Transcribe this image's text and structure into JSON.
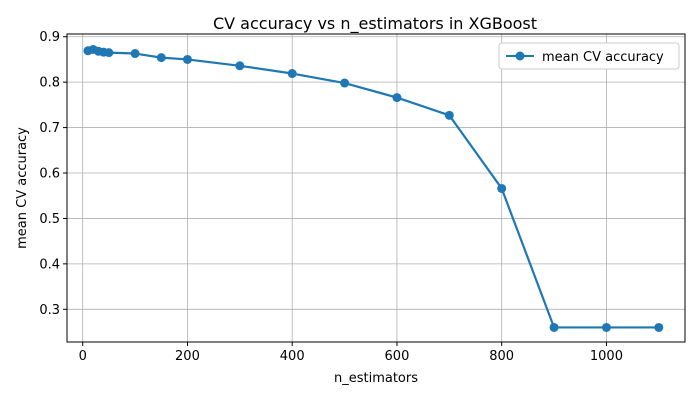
{
  "chart_data": {
    "type": "line",
    "title": "CV accuracy vs n_estimators in XGBoost",
    "xlabel": "n_estimators",
    "ylabel": "mean CV accuracy",
    "xlim": [
      -30,
      1150
    ],
    "ylim": [
      0.228,
      0.906
    ],
    "xticks": [
      0,
      200,
      400,
      600,
      800,
      1000
    ],
    "xtick_labels": [
      "0",
      "200",
      "400",
      "600",
      "800",
      "1000"
    ],
    "yticks": [
      0.3,
      0.4,
      0.5,
      0.6,
      0.7,
      0.8,
      0.9
    ],
    "ytick_labels": [
      "0.3",
      "0.4",
      "0.5",
      "0.6",
      "0.7",
      "0.8",
      "0.9"
    ],
    "grid": true,
    "legend_position": "top-right",
    "series": [
      {
        "name": "mean CV accuracy",
        "color": "#1f77b4",
        "marker": "circle",
        "x": [
          10,
          20,
          30,
          40,
          50,
          100,
          150,
          200,
          300,
          400,
          500,
          600,
          700,
          800,
          900,
          1000,
          1100
        ],
        "y": [
          0.869,
          0.872,
          0.868,
          0.866,
          0.865,
          0.863,
          0.854,
          0.85,
          0.836,
          0.819,
          0.798,
          0.766,
          0.727,
          0.566,
          0.26,
          0.26,
          0.26
        ]
      }
    ]
  }
}
